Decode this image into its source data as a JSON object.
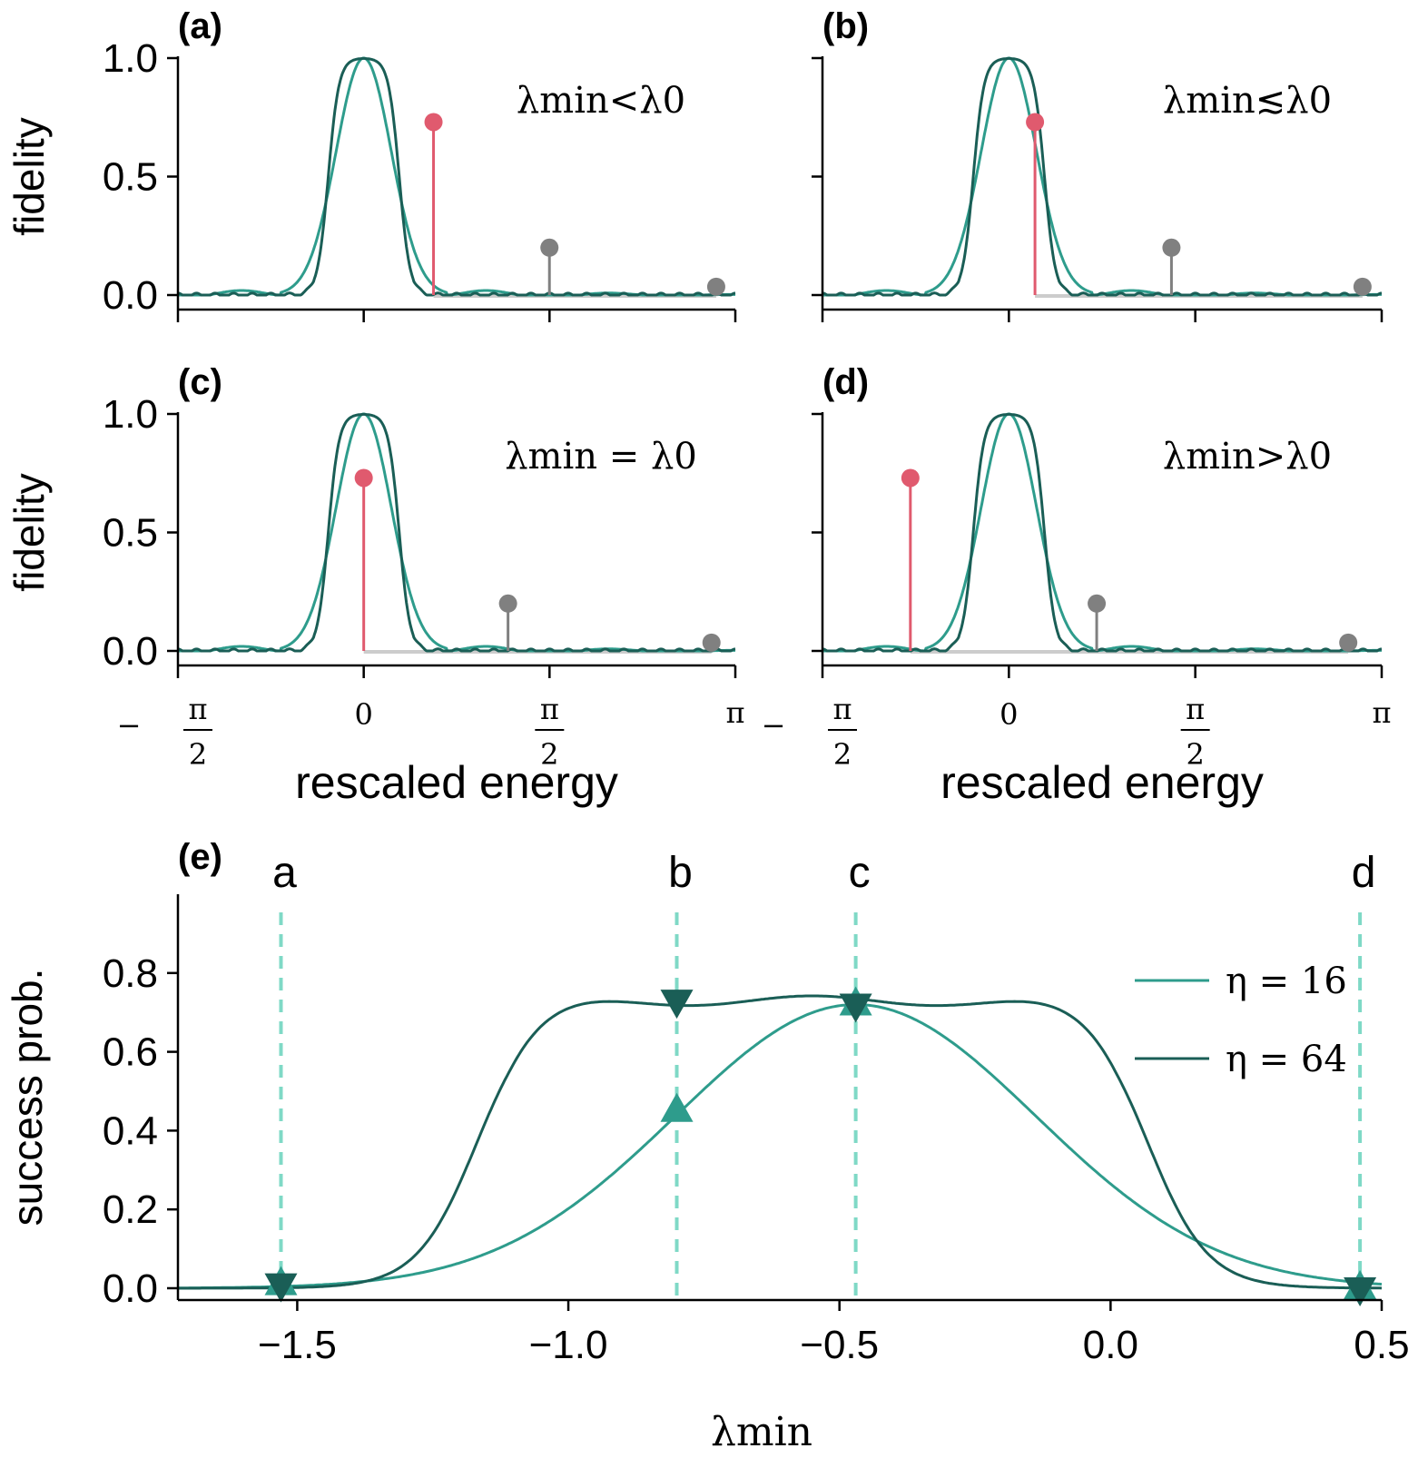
{
  "colors": {
    "eta16": "#2e9c8c",
    "eta64": "#1a5e56",
    "target": "#e05a6e",
    "other": "#808080",
    "baseline": "#cccccc",
    "vline": "#7fd9c6",
    "vlabel": "#5cc9b2"
  },
  "chart_data": [
    {
      "type": "line",
      "panel": "(a)",
      "annotation": "λmin<λ0",
      "ylabel": "fidelity",
      "xlabel": "",
      "ylim": [
        0,
        1
      ],
      "xlim": [
        -1.5708,
        3.1416
      ],
      "yticks": [
        "0.0",
        "0.5",
        "1.0"
      ],
      "series": [
        {
          "name": "η = 16",
          "kind": "filter",
          "eta": 16
        },
        {
          "name": "η = 64",
          "kind": "filter",
          "eta": 64
        }
      ],
      "stems": [
        {
          "x": 0.59,
          "y": 0.73,
          "role": "target"
        },
        {
          "x": 1.57,
          "y": 0.2,
          "role": "other"
        },
        {
          "x": 2.98,
          "y": 0.035,
          "role": "other"
        }
      ]
    },
    {
      "type": "line",
      "panel": "(b)",
      "annotation": "λmin≲λ0",
      "ylabel": "",
      "xlabel": "",
      "ylim": [
        0,
        1
      ],
      "xlim": [
        -1.5708,
        3.1416
      ],
      "series": [
        {
          "name": "η = 16",
          "kind": "filter",
          "eta": 16
        },
        {
          "name": "η = 64",
          "kind": "filter",
          "eta": 64
        }
      ],
      "stems": [
        {
          "x": 0.22,
          "y": 0.73,
          "role": "target"
        },
        {
          "x": 1.37,
          "y": 0.2,
          "role": "other"
        },
        {
          "x": 2.98,
          "y": 0.035,
          "role": "other"
        }
      ]
    },
    {
      "type": "line",
      "panel": "(c)",
      "annotation": "λmin = λ0",
      "ylabel": "fidelity",
      "xlabel": "rescaled energy",
      "ylim": [
        0,
        1
      ],
      "xlim": [
        -1.5708,
        3.1416
      ],
      "yticks": [
        "0.0",
        "0.5",
        "1.0"
      ],
      "series": [
        {
          "name": "η = 16",
          "kind": "filter",
          "eta": 16
        },
        {
          "name": "η = 64",
          "kind": "filter",
          "eta": 64
        }
      ],
      "stems": [
        {
          "x": 0.0,
          "y": 0.73,
          "role": "target"
        },
        {
          "x": 1.22,
          "y": 0.2,
          "role": "other"
        },
        {
          "x": 2.94,
          "y": 0.035,
          "role": "other"
        }
      ]
    },
    {
      "type": "line",
      "panel": "(d)",
      "annotation": "λmin>λ0",
      "ylabel": "",
      "xlabel": "rescaled energy",
      "ylim": [
        0,
        1
      ],
      "xlim": [
        -1.5708,
        3.1416
      ],
      "series": [
        {
          "name": "η = 16",
          "kind": "filter",
          "eta": 16
        },
        {
          "name": "η = 64",
          "kind": "filter",
          "eta": 64
        }
      ],
      "stems": [
        {
          "x": -0.83,
          "y": 0.73,
          "role": "target"
        },
        {
          "x": 0.74,
          "y": 0.2,
          "role": "other"
        },
        {
          "x": 2.86,
          "y": 0.035,
          "role": "other"
        }
      ]
    },
    {
      "type": "line",
      "panel": "(e)",
      "ylabel": "success prob.",
      "xlabel": "λmin",
      "xlim": [
        -1.72,
        0.5
      ],
      "ylim": [
        -0.03,
        1.0
      ],
      "xticks": [
        -1.5,
        -1.0,
        -0.5,
        0.0,
        0.5
      ],
      "xtick_labels": [
        "−1.5",
        "−1.0",
        "−0.5",
        "0.0",
        "0.5"
      ],
      "yticks": [
        0.0,
        0.2,
        0.4,
        0.6,
        0.8
      ],
      "ytick_labels": [
        "0.0",
        "0.2",
        "0.4",
        "0.6",
        "0.8"
      ],
      "legend_position": "right",
      "series": [
        {
          "name": "η = 16",
          "peak_x": -0.47,
          "peak_y": 0.72,
          "markers": [
            {
              "x": -1.53,
              "y": 0.01
            },
            {
              "x": -0.8,
              "y": 0.45
            },
            {
              "x": -0.47,
              "y": 0.72
            },
            {
              "x": 0.46,
              "y": 0.0
            }
          ]
        },
        {
          "name": "η = 64",
          "center_x": -0.55,
          "peak_y": 0.73,
          "markers": [
            {
              "x": -1.53,
              "y": 0.01
            },
            {
              "x": -0.8,
              "y": 0.73
            },
            {
              "x": -0.47,
              "y": 0.72
            },
            {
              "x": 0.46,
              "y": 0.0
            }
          ]
        }
      ],
      "vlines": [
        {
          "label": "a",
          "x": -1.53
        },
        {
          "label": "b",
          "x": -0.8
        },
        {
          "label": "c",
          "x": -0.47
        },
        {
          "label": "d",
          "x": 0.46
        }
      ]
    }
  ],
  "tick_labels_top": {
    "zero": "0",
    "pi_half": "π",
    "two": "2",
    "pi": "π",
    "minus": "−"
  },
  "legend": {
    "eta16": "η = 16",
    "eta64": "η = 64"
  }
}
